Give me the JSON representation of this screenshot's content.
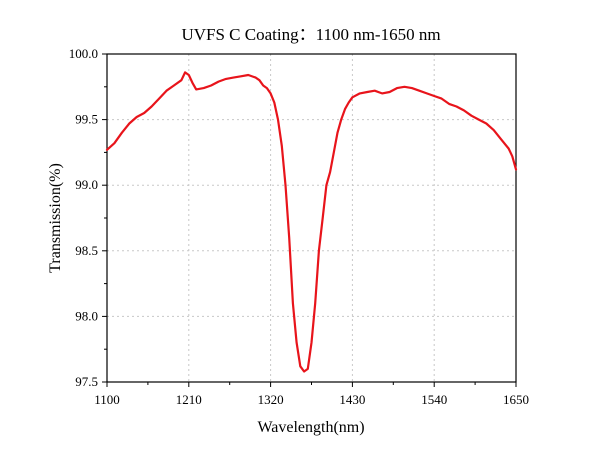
{
  "chart_data": {
    "type": "line",
    "title": "UVFS C Coating：1100 nm-1650 nm",
    "xlabel": "Wavelength(nm)",
    "ylabel": "Transmission(%)",
    "xlim": [
      1100,
      1650
    ],
    "ylim": [
      97.5,
      100.0
    ],
    "x_ticks": [
      1100,
      1210,
      1320,
      1430,
      1540,
      1650
    ],
    "x_tick_labels": [
      "1100",
      "1210",
      "1320",
      "1430",
      "1540",
      "1650"
    ],
    "y_ticks": [
      97.5,
      98.0,
      98.5,
      99.0,
      99.5,
      100.0
    ],
    "y_tick_labels": [
      "97.5",
      "98.0",
      "98.5",
      "99.0",
      "99.5",
      "100.0"
    ],
    "grid": true,
    "legend": "none",
    "series": [
      {
        "color": "#e8141b",
        "x": [
          1100,
          1110,
          1120,
          1130,
          1140,
          1150,
          1160,
          1170,
          1180,
          1190,
          1200,
          1205,
          1210,
          1215,
          1220,
          1230,
          1240,
          1250,
          1260,
          1270,
          1280,
          1290,
          1300,
          1305,
          1310,
          1315,
          1320,
          1325,
          1330,
          1335,
          1340,
          1345,
          1350,
          1355,
          1360,
          1365,
          1370,
          1375,
          1380,
          1385,
          1390,
          1395,
          1400,
          1405,
          1410,
          1415,
          1420,
          1425,
          1430,
          1440,
          1450,
          1460,
          1470,
          1480,
          1490,
          1500,
          1510,
          1520,
          1530,
          1540,
          1550,
          1560,
          1570,
          1580,
          1590,
          1600,
          1610,
          1620,
          1630,
          1640,
          1645,
          1650
        ],
        "y": [
          99.27,
          99.32,
          99.4,
          99.47,
          99.52,
          99.55,
          99.6,
          99.66,
          99.72,
          99.76,
          99.8,
          99.86,
          99.84,
          99.78,
          99.73,
          99.74,
          99.76,
          99.79,
          99.81,
          99.82,
          99.83,
          99.84,
          99.82,
          99.8,
          99.76,
          99.74,
          99.7,
          99.63,
          99.5,
          99.3,
          99.0,
          98.6,
          98.1,
          97.8,
          97.62,
          97.58,
          97.6,
          97.8,
          98.1,
          98.5,
          98.75,
          99.0,
          99.1,
          99.25,
          99.4,
          99.5,
          99.58,
          99.63,
          99.67,
          99.7,
          99.71,
          99.72,
          99.7,
          99.71,
          99.74,
          99.75,
          99.74,
          99.72,
          99.7,
          99.68,
          99.66,
          99.62,
          99.6,
          99.57,
          99.53,
          99.5,
          99.47,
          99.42,
          99.35,
          99.28,
          99.22,
          99.12
        ]
      }
    ]
  }
}
